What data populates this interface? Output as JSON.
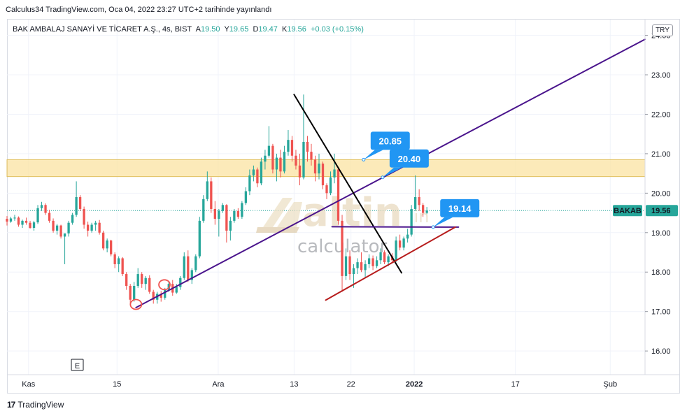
{
  "header": {
    "publish_line": "Calculus34 TradingView.com, Oca 04, 2022 23:27 UTC+2 tarihinde yayınlandı",
    "symbol_title": "BAK AMBALAJ SANAYİ VE TİCARET A.Ş., 4s, BIST",
    "ohlc": {
      "A": "19.50",
      "Y": "19.65",
      "D": "19.47",
      "K": "19.56",
      "change": "+0.03 (+0.15%)"
    },
    "currency": "TRY"
  },
  "footer": {
    "brand": "TradingView",
    "logo_glyph": "17"
  },
  "watermark": {
    "main": "altin",
    "suffix": ".in",
    "sub": "calculator"
  },
  "event_marker": "E",
  "colors": {
    "up": "#26a69a",
    "down": "#ef5350",
    "zone": "#fbe3a2",
    "purple": "#4a148c",
    "black": "#000000",
    "red_trend": "#b71c1c",
    "callout": "#2196f3",
    "price_tag": "#26a69a"
  },
  "chart_data": {
    "type": "candlestick",
    "title": "BAK AMBALAJ SANAYİ VE TİCARET A.Ş., 4s, BIST",
    "ylim": [
      15.4,
      24.4
    ],
    "y_ticks": [
      "16.00",
      "17.00",
      "18.00",
      "19.00",
      "20.00",
      "21.00",
      "22.00",
      "23.00",
      "24.00"
    ],
    "y_tick_values": [
      16,
      17,
      18,
      19,
      20,
      21,
      22,
      23,
      24
    ],
    "x_ticks": [
      {
        "label": "Kas",
        "day": 0
      },
      {
        "label": "15",
        "day": 14
      },
      {
        "label": "Ara",
        "day": 30
      },
      {
        "label": "13",
        "day": 42
      },
      {
        "label": "22",
        "day": 51
      },
      {
        "label": "2022",
        "day": 61
      },
      {
        "label": "17",
        "day": 77
      },
      {
        "label": "Şub",
        "day": 92
      }
    ],
    "x_range_days": [
      -3.4,
      97.5
    ],
    "grid": true,
    "current_price": {
      "symbol": "BAKAB",
      "value": "19.56"
    },
    "resistance_zone": [
      20.42,
      20.85
    ],
    "callouts": [
      {
        "text": "20.85",
        "day": 53,
        "price": 20.85
      },
      {
        "text": "20.40",
        "day": 56,
        "price": 20.4
      },
      {
        "text": "19.14",
        "day": 64,
        "price": 19.14
      }
    ],
    "trend_lines": [
      {
        "name": "purple-uptrend",
        "from": [
          17,
          17.1
        ],
        "to": [
          97.5,
          23.9
        ]
      },
      {
        "name": "black-downtrend",
        "from": [
          42,
          22.5
        ],
        "to": [
          59,
          17.98
        ]
      },
      {
        "name": "purple-support",
        "from": [
          48,
          19.15
        ],
        "to": [
          68,
          19.14
        ]
      },
      {
        "name": "red-rising-support",
        "from": [
          47,
          17.29
        ],
        "to": [
          67.5,
          19.14
        ]
      }
    ],
    "circle_marks": [
      {
        "day": 17,
        "price": 17.18
      },
      {
        "day": 21.5,
        "price": 17.68
      }
    ],
    "candles_days": [
      -3.4,
      63
    ],
    "candles": [
      [
        19.35,
        19.42,
        19.18,
        19.28
      ],
      [
        19.28,
        19.4,
        19.25,
        19.36
      ],
      [
        19.36,
        19.45,
        19.3,
        19.38
      ],
      [
        19.38,
        19.41,
        19.15,
        19.2
      ],
      [
        19.2,
        19.33,
        19.12,
        19.3
      ],
      [
        19.3,
        19.38,
        19.2,
        19.25
      ],
      [
        19.25,
        19.3,
        19.1,
        19.12
      ],
      [
        19.12,
        19.3,
        19.05,
        19.26
      ],
      [
        19.26,
        19.7,
        19.22,
        19.62
      ],
      [
        19.62,
        19.78,
        19.55,
        19.7
      ],
      [
        19.7,
        19.74,
        19.45,
        19.5
      ],
      [
        19.5,
        19.58,
        19.25,
        19.3
      ],
      [
        19.3,
        19.36,
        19.0,
        19.05
      ],
      [
        19.05,
        19.22,
        18.95,
        19.18
      ],
      [
        19.18,
        19.2,
        18.85,
        18.9
      ],
      [
        18.9,
        18.95,
        18.2,
        18.98
      ],
      [
        18.98,
        19.3,
        18.9,
        19.25
      ],
      [
        19.25,
        19.5,
        19.2,
        19.45
      ],
      [
        19.45,
        20.3,
        19.4,
        19.9
      ],
      [
        19.9,
        19.95,
        19.55,
        19.6
      ],
      [
        19.6,
        19.66,
        19.1,
        19.2
      ],
      [
        19.2,
        19.28,
        18.9,
        19.05
      ],
      [
        19.05,
        19.25,
        19.0,
        19.2
      ],
      [
        19.2,
        19.3,
        19.05,
        19.25
      ],
      [
        19.25,
        19.32,
        18.95,
        19.0
      ],
      [
        19.0,
        19.05,
        18.55,
        18.6
      ],
      [
        18.6,
        18.85,
        18.5,
        18.8
      ],
      [
        18.8,
        18.82,
        18.4,
        18.45
      ],
      [
        18.45,
        18.5,
        18.1,
        18.2
      ],
      [
        18.2,
        18.4,
        18.0,
        18.35
      ],
      [
        18.35,
        18.38,
        17.9,
        17.95
      ],
      [
        17.95,
        18.0,
        17.55,
        17.65
      ],
      [
        17.65,
        17.7,
        17.2,
        17.3
      ],
      [
        17.3,
        17.75,
        17.25,
        17.65
      ],
      [
        17.65,
        18.1,
        17.6,
        17.95
      ],
      [
        17.95,
        18.0,
        17.6,
        17.7
      ],
      [
        17.7,
        17.9,
        17.55,
        17.85
      ],
      [
        17.85,
        17.92,
        17.45,
        17.5
      ],
      [
        17.5,
        17.55,
        17.2,
        17.3
      ],
      [
        17.3,
        17.5,
        17.2,
        17.45
      ],
      [
        17.45,
        17.52,
        17.25,
        17.35
      ],
      [
        17.35,
        17.6,
        17.3,
        17.55
      ],
      [
        17.55,
        17.75,
        17.5,
        17.7
      ],
      [
        17.7,
        17.8,
        17.4,
        17.48
      ],
      [
        17.48,
        17.7,
        17.45,
        17.62
      ],
      [
        17.62,
        17.9,
        17.55,
        17.85
      ],
      [
        17.85,
        18.5,
        17.8,
        18.4
      ],
      [
        18.4,
        18.55,
        17.75,
        17.8
      ],
      [
        17.8,
        18.1,
        17.7,
        18.05
      ],
      [
        18.05,
        18.45,
        18.0,
        18.4
      ],
      [
        18.4,
        19.4,
        18.35,
        19.3
      ],
      [
        19.3,
        19.95,
        19.25,
        19.85
      ],
      [
        19.85,
        20.55,
        19.8,
        20.3
      ],
      [
        20.3,
        20.4,
        19.5,
        19.6
      ],
      [
        19.6,
        19.8,
        19.2,
        19.35
      ],
      [
        19.35,
        19.6,
        18.9,
        19.55
      ],
      [
        19.55,
        19.75,
        19.5,
        19.7
      ],
      [
        19.7,
        19.72,
        18.75,
        19.05
      ],
      [
        19.05,
        19.4,
        18.8,
        19.3
      ],
      [
        19.3,
        19.6,
        19.25,
        19.55
      ],
      [
        19.55,
        19.62,
        19.35,
        19.4
      ],
      [
        19.4,
        19.8,
        19.35,
        19.75
      ],
      [
        19.75,
        20.15,
        19.7,
        20.05
      ],
      [
        20.05,
        20.6,
        19.95,
        20.45
      ],
      [
        20.45,
        20.7,
        20.3,
        20.6
      ],
      [
        20.6,
        20.65,
        20.15,
        20.25
      ],
      [
        20.25,
        20.9,
        20.2,
        20.8
      ],
      [
        20.8,
        21.1,
        20.6,
        20.95
      ],
      [
        20.95,
        21.7,
        20.9,
        21.2
      ],
      [
        21.2,
        21.25,
        20.5,
        20.6
      ],
      [
        20.6,
        21.0,
        20.3,
        20.9
      ],
      [
        20.9,
        21.1,
        20.4,
        20.55
      ],
      [
        20.55,
        21.2,
        20.5,
        21.05
      ],
      [
        21.05,
        21.6,
        20.95,
        21.35
      ],
      [
        21.35,
        21.45,
        20.8,
        20.95
      ],
      [
        20.95,
        21.1,
        20.6,
        20.7
      ],
      [
        20.7,
        21.0,
        20.2,
        20.4
      ],
      [
        20.4,
        22.5,
        20.35,
        21.3
      ],
      [
        21.3,
        21.45,
        20.8,
        21.05
      ],
      [
        21.05,
        21.25,
        20.7,
        20.85
      ],
      [
        20.85,
        20.95,
        20.3,
        20.5
      ],
      [
        20.5,
        21.0,
        20.35,
        20.75
      ],
      [
        20.75,
        20.8,
        20.1,
        20.2
      ],
      [
        20.2,
        20.25,
        19.85,
        20.0
      ],
      [
        20.0,
        20.55,
        19.95,
        20.4
      ],
      [
        20.4,
        21.0,
        20.25,
        20.6
      ],
      [
        20.6,
        20.65,
        19.2,
        19.3
      ],
      [
        19.3,
        19.45,
        17.5,
        17.9
      ],
      [
        17.9,
        18.6,
        17.8,
        18.4
      ],
      [
        18.4,
        18.55,
        17.8,
        17.95
      ],
      [
        17.95,
        18.2,
        17.6,
        18.1
      ],
      [
        18.1,
        18.35,
        17.95,
        18.25
      ],
      [
        18.25,
        18.5,
        18.0,
        18.05
      ],
      [
        18.05,
        18.3,
        17.85,
        18.2
      ],
      [
        18.2,
        18.45,
        18.1,
        18.35
      ],
      [
        18.35,
        18.42,
        18.05,
        18.15
      ],
      [
        18.15,
        18.4,
        18.1,
        18.3
      ],
      [
        18.3,
        18.6,
        18.2,
        18.5
      ],
      [
        18.5,
        18.55,
        18.2,
        18.25
      ],
      [
        18.25,
        18.45,
        18.15,
        18.4
      ],
      [
        18.4,
        18.48,
        18.25,
        18.3
      ],
      [
        18.3,
        18.9,
        18.25,
        18.8
      ],
      [
        18.8,
        18.95,
        18.55,
        18.62
      ],
      [
        18.62,
        18.9,
        18.55,
        18.85
      ],
      [
        18.85,
        19.1,
        18.75,
        18.95
      ],
      [
        18.95,
        19.7,
        18.9,
        19.6
      ],
      [
        19.6,
        20.45,
        19.55,
        19.9
      ],
      [
        19.9,
        20.1,
        19.55,
        19.7
      ],
      [
        19.7,
        19.75,
        19.4,
        19.5
      ],
      [
        19.5,
        19.65,
        19.47,
        19.56
      ]
    ]
  }
}
